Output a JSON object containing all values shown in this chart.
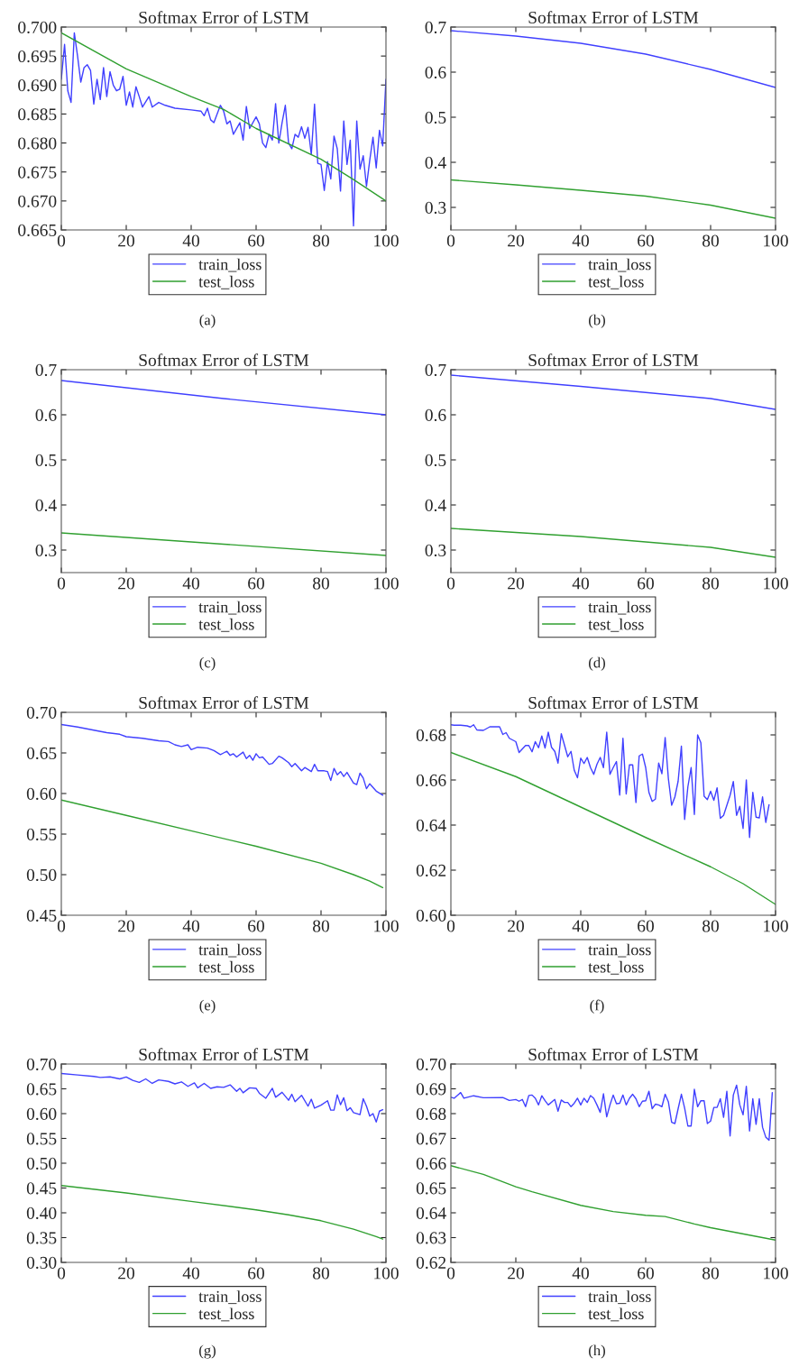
{
  "chart_data": [
    {
      "type": "line",
      "title": "Softmax Error of LSTM",
      "annotations": [
        "(a)"
      ],
      "xlim": [
        0,
        100
      ],
      "xticks": [
        0,
        20,
        40,
        60,
        80,
        100
      ],
      "ylim": [
        0.665,
        0.7
      ],
      "yticks": [
        {
          "value": 0.665,
          "label": "0.665"
        },
        {
          "value": 0.67,
          "label": "0.670"
        },
        {
          "value": 0.675,
          "label": "0.675"
        },
        {
          "value": 0.68,
          "label": "0.680"
        },
        {
          "value": 0.685,
          "label": "0.685"
        },
        {
          "value": 0.69,
          "label": "0.690"
        },
        {
          "value": 0.695,
          "label": "0.695"
        },
        {
          "value": 0.7,
          "label": "0.700"
        }
      ],
      "legend": "bottom",
      "series": [
        {
          "name": "train_loss",
          "color": "#4040ff",
          "x": [
            0,
            1,
            2,
            3,
            4,
            5,
            6,
            7,
            8,
            9,
            10,
            11,
            12,
            13,
            14,
            15,
            16,
            17,
            18,
            19,
            20,
            21,
            22,
            23,
            24,
            25,
            27,
            28,
            30,
            32,
            35,
            40,
            43,
            44,
            45,
            46,
            47,
            49,
            50,
            51,
            52,
            53,
            55,
            56,
            57,
            58,
            60,
            61,
            62,
            63,
            64,
            65,
            66,
            67,
            68,
            69,
            70,
            71,
            72,
            73,
            74,
            75,
            76,
            77,
            78,
            79,
            80,
            81,
            82,
            83,
            84,
            85,
            86,
            87,
            88,
            89,
            90,
            91,
            92,
            93,
            94,
            95,
            96,
            97,
            98,
            99,
            100
          ],
          "values": [
            0.691,
            0.697,
            0.689,
            0.687,
            0.699,
            0.695,
            0.6905,
            0.693,
            0.6935,
            0.6925,
            0.6867,
            0.691,
            0.6875,
            0.693,
            0.688,
            0.6923,
            0.69,
            0.689,
            0.6893,
            0.6915,
            0.6865,
            0.6888,
            0.6862,
            0.6897,
            0.688,
            0.6862,
            0.688,
            0.6862,
            0.687,
            0.6865,
            0.686,
            0.6857,
            0.6855,
            0.6847,
            0.686,
            0.684,
            0.6835,
            0.6865,
            0.6855,
            0.6833,
            0.6838,
            0.6815,
            0.6835,
            0.6805,
            0.6863,
            0.6825,
            0.6845,
            0.6833,
            0.68,
            0.6792,
            0.6815,
            0.6805,
            0.6868,
            0.68,
            0.6835,
            0.6865,
            0.68,
            0.679,
            0.6815,
            0.681,
            0.6828,
            0.6808,
            0.6827,
            0.678,
            0.6867,
            0.6765,
            0.6763,
            0.6718,
            0.6768,
            0.6738,
            0.6812,
            0.679,
            0.6717,
            0.6838,
            0.6763,
            0.6805,
            0.6657,
            0.6838,
            0.6755,
            0.6778,
            0.6725,
            0.677,
            0.681,
            0.6757,
            0.6822,
            0.6795,
            0.691
          ]
        },
        {
          "name": "test_loss",
          "color": "#30a030",
          "x": [
            0,
            20,
            40,
            50,
            60,
            80,
            90,
            100
          ],
          "values": [
            0.699,
            0.6928,
            0.688,
            0.6858,
            0.6825,
            0.6772,
            0.6737,
            0.67
          ]
        }
      ]
    },
    {
      "type": "line",
      "title": "Softmax Error of LSTM",
      "annotations": [
        "(b)"
      ],
      "xlim": [
        0,
        100
      ],
      "xticks": [
        0,
        20,
        40,
        60,
        80,
        100
      ],
      "ylim": [
        0.25,
        0.7
      ],
      "yticks": [
        0.3,
        0.4,
        0.5,
        0.6,
        0.7
      ],
      "legend": "bottom",
      "series": [
        {
          "name": "train_loss",
          "color": "#4040ff",
          "x": [
            0,
            20,
            40,
            60,
            80,
            100
          ],
          "values": [
            0.692,
            0.68,
            0.664,
            0.64,
            0.606,
            0.566
          ]
        },
        {
          "name": "test_loss",
          "color": "#30a030",
          "x": [
            0,
            20,
            40,
            60,
            80,
            100
          ],
          "values": [
            0.361,
            0.35,
            0.338,
            0.325,
            0.305,
            0.276
          ]
        }
      ]
    },
    {
      "type": "line",
      "title": "Softmax Error of LSTM",
      "annotations": [
        "(c)"
      ],
      "xlim": [
        0,
        100
      ],
      "xticks": [
        0,
        20,
        40,
        60,
        80,
        100
      ],
      "ylim": [
        0.25,
        0.7
      ],
      "yticks": [
        0.3,
        0.4,
        0.5,
        0.6,
        0.7
      ],
      "legend": "bottom",
      "series": [
        {
          "name": "train_loss",
          "color": "#4040ff",
          "x": [
            0,
            50,
            100
          ],
          "values": [
            0.676,
            0.636,
            0.6
          ]
        },
        {
          "name": "test_loss",
          "color": "#30a030",
          "x": [
            0,
            50,
            100
          ],
          "values": [
            0.338,
            0.313,
            0.288
          ]
        }
      ]
    },
    {
      "type": "line",
      "title": "Softmax Error of LSTM",
      "annotations": [
        "(d)"
      ],
      "xlim": [
        0,
        100
      ],
      "xticks": [
        0,
        20,
        40,
        60,
        80,
        100
      ],
      "ylim": [
        0.25,
        0.7
      ],
      "yticks": [
        0.3,
        0.4,
        0.5,
        0.6,
        0.7
      ],
      "legend": "bottom",
      "series": [
        {
          "name": "train_loss",
          "color": "#4040ff",
          "x": [
            0,
            40,
            80,
            100
          ],
          "values": [
            0.688,
            0.663,
            0.636,
            0.612
          ]
        },
        {
          "name": "test_loss",
          "color": "#30a030",
          "x": [
            0,
            40,
            80,
            100
          ],
          "values": [
            0.348,
            0.33,
            0.306,
            0.284
          ]
        }
      ]
    },
    {
      "type": "line",
      "title": "Softmax Error of LSTM",
      "annotations": [
        "(e)"
      ],
      "xlim": [
        0,
        100
      ],
      "xticks": [
        0,
        20,
        40,
        60,
        80,
        100
      ],
      "ylim": [
        0.45,
        0.7
      ],
      "yticks": [
        {
          "value": 0.45,
          "label": "0.45"
        },
        {
          "value": 0.5,
          "label": "0.50"
        },
        {
          "value": 0.55,
          "label": "0.55"
        },
        {
          "value": 0.6,
          "label": "0.60"
        },
        {
          "value": 0.65,
          "label": "0.65"
        },
        {
          "value": 0.7,
          "label": "0.70"
        }
      ],
      "legend": "bottom",
      "series": [
        {
          "name": "train_loss",
          "color": "#4040ff",
          "x": [
            0,
            5,
            10,
            14,
            18,
            20,
            25,
            30,
            33,
            35,
            37,
            39,
            40,
            42,
            45,
            47,
            49,
            50,
            51,
            52,
            53,
            54,
            56,
            57,
            58,
            59,
            60,
            61,
            62,
            64,
            65,
            67,
            68,
            70,
            71,
            72,
            74,
            75,
            77,
            78,
            79,
            81,
            82,
            83,
            84,
            85,
            86,
            87,
            88,
            90,
            91,
            92,
            93,
            94,
            95,
            97,
            99
          ],
          "values": [
            0.685,
            0.682,
            0.678,
            0.675,
            0.673,
            0.67,
            0.668,
            0.665,
            0.664,
            0.66,
            0.658,
            0.66,
            0.654,
            0.657,
            0.656,
            0.653,
            0.648,
            0.65,
            0.652,
            0.647,
            0.649,
            0.645,
            0.651,
            0.643,
            0.647,
            0.641,
            0.649,
            0.644,
            0.645,
            0.636,
            0.637,
            0.646,
            0.644,
            0.638,
            0.633,
            0.637,
            0.628,
            0.632,
            0.627,
            0.636,
            0.628,
            0.628,
            0.627,
            0.616,
            0.631,
            0.623,
            0.627,
            0.621,
            0.626,
            0.613,
            0.611,
            0.625,
            0.619,
            0.606,
            0.612,
            0.603,
            0.598
          ]
        },
        {
          "name": "test_loss",
          "color": "#30a030",
          "x": [
            0,
            20,
            40,
            60,
            80,
            90,
            95,
            99
          ],
          "values": [
            0.592,
            0.573,
            0.554,
            0.535,
            0.514,
            0.5,
            0.492,
            0.484
          ]
        }
      ]
    },
    {
      "type": "line",
      "title": "Softmax Error of LSTM",
      "annotations": [
        "(f)"
      ],
      "xlim": [
        0,
        100
      ],
      "xticks": [
        0,
        20,
        40,
        60,
        80,
        100
      ],
      "ylim": [
        0.6,
        0.69
      ],
      "yticks": [
        {
          "value": 0.6,
          "label": "0.60"
        },
        0.62,
        0.64,
        0.66,
        0.68
      ],
      "legend": "bottom",
      "series": [
        {
          "name": "train_loss",
          "color": "#4040ff",
          "x": [
            0,
            1,
            3,
            5,
            6,
            7,
            8,
            10,
            12,
            15,
            16,
            17,
            18,
            20,
            21,
            23,
            24,
            25,
            26,
            27,
            28,
            29,
            30,
            31,
            32,
            33,
            34,
            36,
            37,
            38,
            39,
            40,
            41,
            42,
            43,
            44,
            45,
            46,
            47,
            48,
            49,
            50,
            51,
            52,
            53,
            54,
            55,
            56,
            57,
            58,
            59,
            60,
            61,
            62,
            63,
            64,
            65,
            66,
            67,
            68,
            69,
            70,
            71,
            72,
            73,
            74,
            75,
            76,
            77,
            78,
            79,
            80,
            81,
            82,
            83,
            84,
            86,
            87,
            88,
            89,
            90,
            91,
            92,
            93,
            94,
            95,
            96,
            97,
            98
          ],
          "values": [
            0.6845,
            0.6843,
            0.6843,
            0.684,
            0.6835,
            0.6845,
            0.6822,
            0.682,
            0.6836,
            0.6836,
            0.6802,
            0.681,
            0.6785,
            0.677,
            0.6722,
            0.6753,
            0.6753,
            0.6725,
            0.677,
            0.6743,
            0.6795,
            0.6742,
            0.6812,
            0.6745,
            0.6727,
            0.6675,
            0.6805,
            0.6703,
            0.6727,
            0.6643,
            0.661,
            0.6697,
            0.6673,
            0.67,
            0.6655,
            0.6625,
            0.667,
            0.67,
            0.6655,
            0.6812,
            0.6625,
            0.6655,
            0.6682,
            0.6533,
            0.6785,
            0.6538,
            0.6667,
            0.6667,
            0.65,
            0.6707,
            0.6715,
            0.6655,
            0.6545,
            0.6505,
            0.6515,
            0.6675,
            0.6628,
            0.6788,
            0.6605,
            0.6488,
            0.6525,
            0.6595,
            0.675,
            0.6425,
            0.657,
            0.6655,
            0.6447,
            0.68,
            0.6765,
            0.6528,
            0.6513,
            0.655,
            0.651,
            0.6565,
            0.643,
            0.6443,
            0.6532,
            0.6593,
            0.6443,
            0.6483,
            0.6385,
            0.66,
            0.6345,
            0.6545,
            0.6435,
            0.6432,
            0.6525,
            0.6412,
            0.649
          ]
        },
        {
          "name": "test_loss",
          "color": "#30a030",
          "x": [
            0,
            20,
            40,
            60,
            80,
            90,
            100
          ],
          "values": [
            0.6722,
            0.6615,
            0.648,
            0.6345,
            0.6215,
            0.614,
            0.6048
          ]
        }
      ]
    },
    {
      "type": "line",
      "title": "Softmax Error of LSTM",
      "annotations": [
        "(g)"
      ],
      "xlim": [
        0,
        100
      ],
      "xticks": [
        0,
        20,
        40,
        60,
        80,
        100
      ],
      "ylim": [
        0.3,
        0.7
      ],
      "yticks": [
        {
          "value": 0.3,
          "label": "0.30"
        },
        0.35,
        {
          "value": 0.4,
          "label": "0.40"
        },
        0.45,
        {
          "value": 0.5,
          "label": "0.50"
        },
        0.55,
        {
          "value": 0.6,
          "label": "0.60"
        },
        0.65,
        {
          "value": 0.7,
          "label": "0.70"
        }
      ],
      "legend": "bottom",
      "series": [
        {
          "name": "train_loss",
          "color": "#4040ff",
          "x": [
            0,
            5,
            10,
            12,
            15,
            18,
            20,
            22,
            24,
            26,
            28,
            30,
            33,
            35,
            37,
            39,
            41,
            42,
            44,
            46,
            48,
            50,
            52,
            54,
            55,
            56,
            58,
            60,
            61,
            63,
            65,
            66,
            68,
            70,
            71,
            72,
            74,
            76,
            77,
            78,
            80,
            82,
            83,
            84,
            85,
            86,
            87,
            88,
            89,
            90,
            92,
            93,
            94,
            95,
            96,
            97,
            98,
            99
          ],
          "values": [
            0.681,
            0.678,
            0.675,
            0.673,
            0.674,
            0.67,
            0.674,
            0.667,
            0.663,
            0.67,
            0.661,
            0.668,
            0.665,
            0.66,
            0.664,
            0.655,
            0.662,
            0.652,
            0.661,
            0.651,
            0.654,
            0.653,
            0.658,
            0.645,
            0.651,
            0.642,
            0.652,
            0.651,
            0.641,
            0.631,
            0.651,
            0.633,
            0.643,
            0.627,
            0.639,
            0.624,
            0.637,
            0.615,
            0.629,
            0.611,
            0.617,
            0.626,
            0.607,
            0.607,
            0.638,
            0.618,
            0.632,
            0.606,
            0.612,
            0.602,
            0.598,
            0.63,
            0.615,
            0.595,
            0.6,
            0.583,
            0.605,
            0.608
          ]
        },
        {
          "name": "test_loss",
          "color": "#30a030",
          "x": [
            0,
            20,
            40,
            60,
            70,
            80,
            90,
            97,
            99
          ],
          "values": [
            0.455,
            0.44,
            0.423,
            0.406,
            0.396,
            0.384,
            0.367,
            0.352,
            0.347
          ]
        }
      ]
    },
    {
      "type": "line",
      "title": "Softmax Error of LSTM",
      "annotations": [
        "(h)"
      ],
      "xlim": [
        0,
        100
      ],
      "xticks": [
        0,
        20,
        40,
        60,
        80,
        100
      ],
      "ylim": [
        0.62,
        0.7
      ],
      "yticks": [
        0.62,
        0.63,
        0.64,
        0.65,
        0.66,
        0.67,
        0.68,
        0.69,
        {
          "value": 0.7,
          "label": "0.70"
        }
      ],
      "legend": "bottom",
      "series": [
        {
          "name": "train_loss",
          "color": "#4040ff",
          "x": [
            0,
            1,
            3,
            4,
            7,
            10,
            16,
            18,
            20,
            21,
            22,
            23,
            24,
            25,
            26,
            27,
            28,
            29,
            30,
            32,
            33,
            34,
            35,
            36,
            37,
            38,
            39,
            40,
            41,
            42,
            43,
            44,
            45,
            46,
            47,
            48,
            49,
            50,
            51,
            52,
            53,
            54,
            55,
            56,
            57,
            58,
            59,
            60,
            61,
            62,
            63,
            64,
            65,
            66,
            67,
            68,
            69,
            70,
            71,
            72,
            73,
            74,
            75,
            76,
            77,
            78,
            79,
            80,
            81,
            82,
            83,
            84,
            85,
            86,
            87,
            88,
            89,
            90,
            91,
            92,
            93,
            94,
            95,
            96,
            97,
            98,
            99
          ],
          "values": [
            0.6866,
            0.6862,
            0.6885,
            0.6862,
            0.6872,
            0.6864,
            0.6865,
            0.6853,
            0.6857,
            0.685,
            0.6857,
            0.6828,
            0.6873,
            0.6875,
            0.6862,
            0.6835,
            0.6872,
            0.6852,
            0.6835,
            0.6857,
            0.681,
            0.6855,
            0.6845,
            0.6845,
            0.6828,
            0.6842,
            0.6862,
            0.6835,
            0.6862,
            0.6845,
            0.6873,
            0.6862,
            0.6835,
            0.6805,
            0.688,
            0.6787,
            0.6835,
            0.6875,
            0.684,
            0.6842,
            0.6875,
            0.6835,
            0.6862,
            0.6878,
            0.686,
            0.6828,
            0.685,
            0.6852,
            0.689,
            0.682,
            0.6838,
            0.6835,
            0.6828,
            0.6878,
            0.6847,
            0.6765,
            0.676,
            0.682,
            0.6878,
            0.6822,
            0.675,
            0.675,
            0.6898,
            0.6828,
            0.6852,
            0.6852,
            0.676,
            0.677,
            0.6825,
            0.6825,
            0.686,
            0.6785,
            0.689,
            0.671,
            0.6875,
            0.6915,
            0.6835,
            0.6795,
            0.691,
            0.673,
            0.686,
            0.6757,
            0.686,
            0.6745,
            0.6705,
            0.6693,
            0.6885
          ]
        },
        {
          "name": "test_loss",
          "color": "#30a030",
          "x": [
            0,
            10,
            20,
            25,
            40,
            50,
            60,
            66,
            75,
            80,
            88,
            100
          ],
          "values": [
            0.659,
            0.6555,
            0.6505,
            0.6485,
            0.643,
            0.6405,
            0.639,
            0.6385,
            0.6355,
            0.634,
            0.632,
            0.629
          ]
        }
      ]
    }
  ]
}
